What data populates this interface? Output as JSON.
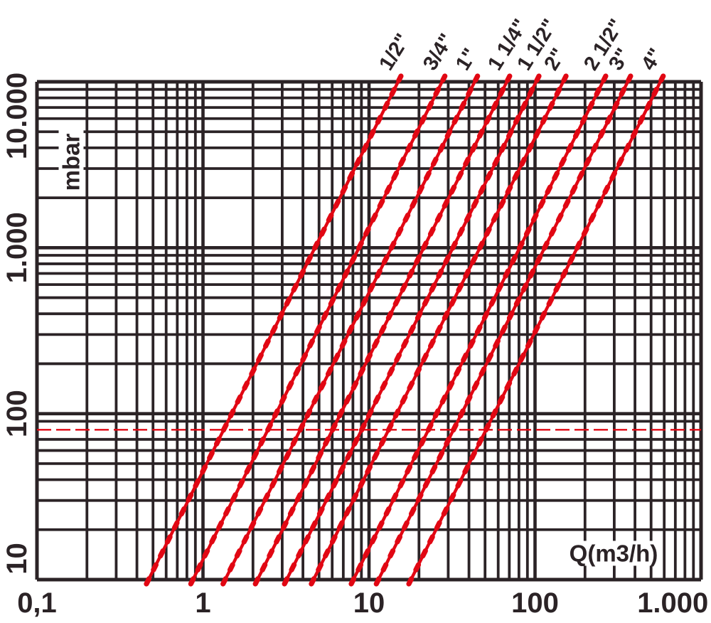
{
  "chart_data": {
    "type": "line",
    "xlabel": "Q(m3/h)",
    "ylabel": "mbar",
    "x_scale": "log",
    "y_scale": "log",
    "xlim": [
      0.1,
      1000
    ],
    "ylim": [
      10,
      10000
    ],
    "grid": "full logarithmic minor grid on both axes",
    "legend_position": "labels rotated at top end of each line",
    "x_ticks": [
      {
        "value": 0.1,
        "label": "0,1"
      },
      {
        "value": 1,
        "label": "1"
      },
      {
        "value": 10,
        "label": "10"
      },
      {
        "value": 100,
        "label": "100"
      },
      {
        "value": 1000,
        "label": "1.000"
      }
    ],
    "y_ticks": [
      {
        "value": 10,
        "label": "10"
      },
      {
        "value": 100,
        "label": "100"
      },
      {
        "value": 1000,
        "label": "1.000"
      },
      {
        "value": 10000,
        "label": "10.000"
      }
    ],
    "reference_line": {
      "axis": "y",
      "dp_mbar": 80,
      "style": "thin dashed red horizontal line"
    },
    "series": [
      {
        "name": "1/2\"",
        "q_m3h": [
          0.47,
          14.9
        ],
        "dp_mbar": [
          10,
          10000
        ]
      },
      {
        "name": "3/4\"",
        "q_m3h": [
          0.87,
          27.4
        ],
        "dp_mbar": [
          10,
          10000
        ]
      },
      {
        "name": "1\"",
        "q_m3h": [
          1.36,
          43.1
        ],
        "dp_mbar": [
          10,
          10000
        ]
      },
      {
        "name": "1 1/4\"",
        "q_m3h": [
          2.13,
          67.3
        ],
        "dp_mbar": [
          10,
          10000
        ]
      },
      {
        "name": "1 1/2\"",
        "q_m3h": [
          3.19,
          101
        ],
        "dp_mbar": [
          10,
          10000
        ]
      },
      {
        "name": "2\"",
        "q_m3h": [
          4.63,
          147
        ],
        "dp_mbar": [
          10,
          10000
        ]
      },
      {
        "name": "2 1/2\"",
        "q_m3h": [
          8.05,
          255
        ],
        "dp_mbar": [
          10,
          10000
        ]
      },
      {
        "name": "3\"",
        "q_m3h": [
          11.4,
          360
        ],
        "dp_mbar": [
          10,
          10000
        ]
      },
      {
        "name": "4\"",
        "q_m3h": [
          17.9,
          566
        ],
        "dp_mbar": [
          10,
          10000
        ]
      }
    ],
    "colors": {
      "series": "#e10713",
      "reference": "#e10713",
      "grid": "#2b2326",
      "text": "#2b2326",
      "background": "#ffffff"
    }
  }
}
